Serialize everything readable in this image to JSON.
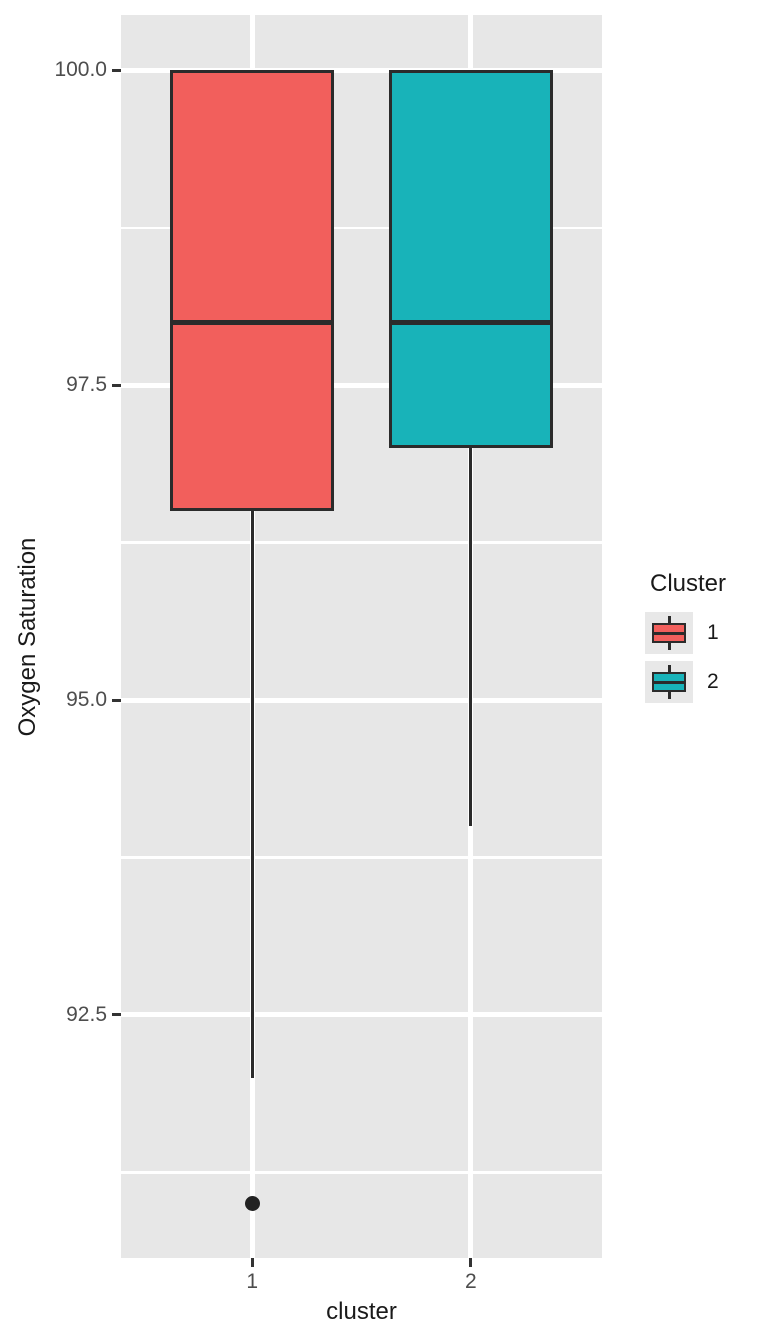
{
  "figure": {
    "kind": "boxplot-figure"
  },
  "legend": {
    "title": "Cluster",
    "entries": [
      {
        "label": "1",
        "color": "#F25F5C"
      },
      {
        "label": "2",
        "color": "#18B3B9"
      }
    ]
  },
  "chart_data": {
    "type": "boxplot",
    "title": "",
    "xlabel": "cluster",
    "ylabel": "Oxygen Saturation",
    "categories": [
      "1",
      "2"
    ],
    "series": [
      {
        "name": "1",
        "color": "#F25F5C",
        "lower_whisker": 92.0,
        "q1": 96.5,
        "median": 98.0,
        "q3": 100.0,
        "upper_whisker": 100.0,
        "outliers": [
          91.0
        ]
      },
      {
        "name": "2",
        "color": "#18B3B9",
        "lower_whisker": 94.0,
        "q1": 97.0,
        "median": 98.0,
        "q3": 100.0,
        "upper_whisker": 100.0,
        "outliers": []
      }
    ],
    "y_ticks": [
      100.0,
      97.5,
      95.0,
      92.5
    ],
    "y_tick_labels": [
      "100.0",
      "97.5",
      "95.0",
      "92.5"
    ],
    "y_minor": [
      98.75,
      96.25,
      93.75,
      91.25
    ],
    "ylim": [
      90.57,
      100.44
    ],
    "x_positions": [
      1,
      2
    ],
    "xlim": [
      0.4,
      2.6
    ],
    "box_width_units": 0.75,
    "grid": "on",
    "legend_position": "right",
    "colors": {
      "panel_bg": "#E7E7E7",
      "grid": "#FFFFFF",
      "box_border": "#2B2B2B",
      "median": "#2B2B2B",
      "whisker": "#2B2B2B",
      "outlier": "#222222",
      "tick_mark": "#333333",
      "tick_label": "#4D4D4D",
      "legend_key_bg": "#E8E8E8"
    }
  }
}
